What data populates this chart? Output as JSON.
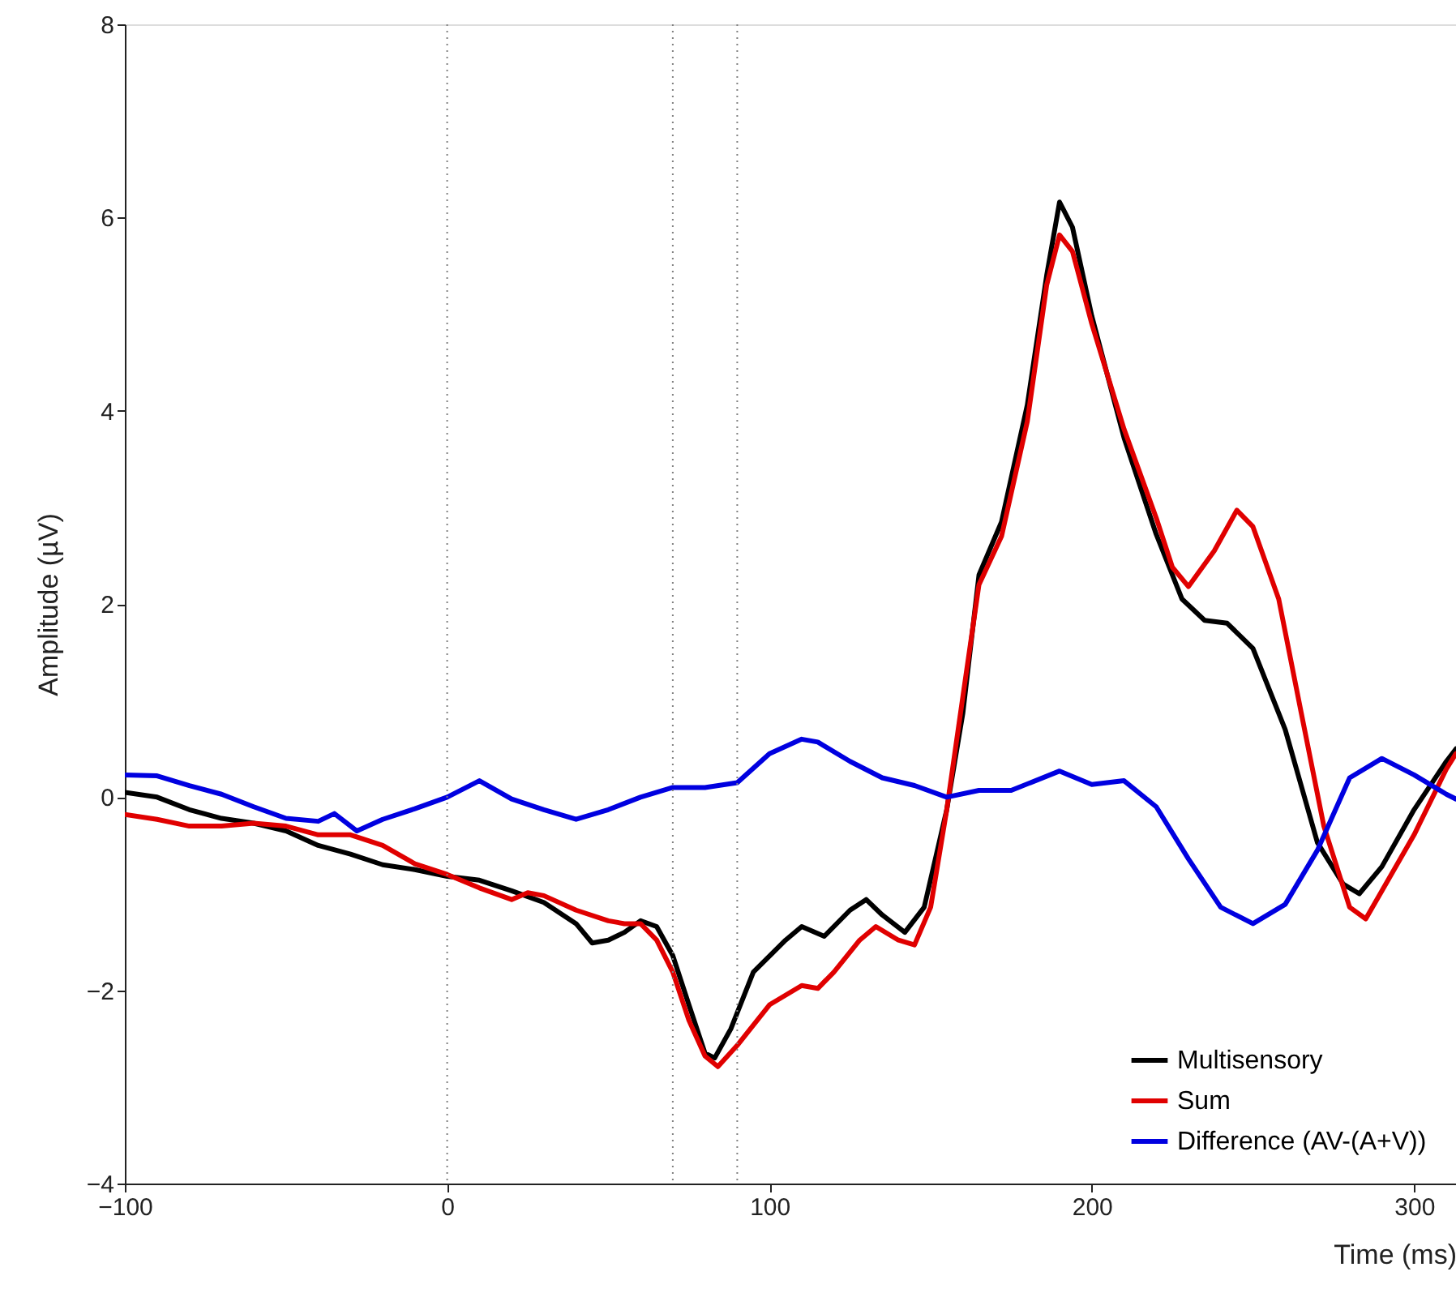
{
  "chart_data": {
    "type": "line",
    "xlabel": "Time (ms)",
    "ylabel": "Amplitude (µV)",
    "xlim": [
      -100,
      313
    ],
    "ylim": [
      -4,
      8
    ],
    "xticks": [
      -100,
      0,
      100,
      200,
      300
    ],
    "yticks": [
      -4,
      -2,
      0,
      2,
      4,
      6,
      8
    ],
    "grid": false,
    "legend": "bottom right",
    "line_style": "solid",
    "marker": "none",
    "ref_lines": [
      {
        "axis": "x",
        "value": 0,
        "color": "#808080",
        "line_style": "dotted"
      },
      {
        "axis": "x",
        "value": 70,
        "color": "#808080",
        "line_style": "dotted"
      },
      {
        "axis": "x",
        "value": 90,
        "color": "#808080",
        "line_style": "dotted"
      }
    ],
    "series": [
      {
        "name": "Multisensory",
        "color": "#000000",
        "x": [
          -100,
          -90,
          -80,
          -70,
          -60,
          -50,
          -40,
          -30,
          -20,
          -10,
          0,
          10,
          20,
          30,
          40,
          45,
          50,
          55,
          60,
          65,
          70,
          75,
          80,
          83,
          88,
          95,
          105,
          110,
          117,
          125,
          130,
          135,
          142,
          148,
          155,
          160,
          165,
          172,
          180,
          186,
          190,
          194,
          200,
          210,
          220,
          228,
          235,
          242,
          250,
          260,
          270,
          278,
          283,
          290,
          300,
          310,
          313
        ],
        "values": [
          0.05,
          0,
          -0.13,
          -0.22,
          -0.27,
          -0.35,
          -0.5,
          -0.59,
          -0.7,
          -0.75,
          -0.82,
          -0.86,
          -0.97,
          -1.09,
          -1.31,
          -1.51,
          -1.48,
          -1.4,
          -1.28,
          -1.34,
          -1.64,
          -2.15,
          -2.65,
          -2.7,
          -2.4,
          -1.81,
          -1.48,
          -1.34,
          -1.44,
          -1.17,
          -1.06,
          -1.22,
          -1.4,
          -1.14,
          -0.13,
          0.87,
          2.3,
          2.85,
          4.06,
          5.4,
          6.16,
          5.9,
          4.98,
          3.72,
          2.72,
          2.05,
          1.83,
          1.8,
          1.54,
          0.7,
          -0.47,
          -0.9,
          -1.0,
          -0.72,
          -0.13,
          0.37,
          0.5
        ]
      },
      {
        "name": "Sum",
        "color": "#e00000",
        "x": [
          -100,
          -90,
          -80,
          -70,
          -60,
          -50,
          -40,
          -30,
          -20,
          -10,
          0,
          10,
          20,
          25,
          30,
          40,
          50,
          55,
          60,
          65,
          70,
          75,
          80,
          84,
          90,
          100,
          110,
          115,
          120,
          128,
          133,
          140,
          145,
          150,
          155,
          160,
          165,
          172,
          180,
          186,
          190,
          194,
          200,
          210,
          220,
          225,
          230,
          238,
          245,
          250,
          258,
          265,
          272,
          280,
          285,
          290,
          300,
          310,
          313
        ],
        "values": [
          -0.18,
          -0.23,
          -0.3,
          -0.3,
          -0.27,
          -0.3,
          -0.39,
          -0.39,
          -0.5,
          -0.69,
          -0.8,
          -0.94,
          -1.06,
          -0.99,
          -1.02,
          -1.17,
          -1.28,
          -1.31,
          -1.31,
          -1.48,
          -1.81,
          -2.31,
          -2.68,
          -2.79,
          -2.57,
          -2.15,
          -1.95,
          -1.98,
          -1.81,
          -1.48,
          -1.34,
          -1.48,
          -1.53,
          -1.14,
          -0.13,
          1.04,
          2.2,
          2.7,
          3.89,
          5.3,
          5.82,
          5.65,
          4.9,
          3.81,
          2.89,
          2.38,
          2.18,
          2.55,
          2.97,
          2.8,
          2.05,
          0.87,
          -0.3,
          -1.14,
          -1.26,
          -0.97,
          -0.39,
          0.29,
          0.45
        ]
      },
      {
        "name": "Difference (AV-(A+V))",
        "color": "#0000e0",
        "x": [
          -100,
          -90,
          -80,
          -70,
          -60,
          -50,
          -40,
          -35,
          -28,
          -20,
          -10,
          0,
          10,
          20,
          30,
          40,
          50,
          60,
          70,
          80,
          90,
          100,
          110,
          115,
          125,
          135,
          145,
          155,
          165,
          175,
          190,
          200,
          210,
          220,
          230,
          240,
          250,
          260,
          270,
          280,
          290,
          300,
          310,
          313
        ],
        "values": [
          0.23,
          0.22,
          0.12,
          0.03,
          -0.1,
          -0.22,
          -0.25,
          -0.17,
          -0.35,
          -0.23,
          -0.12,
          0,
          0.17,
          -0.02,
          -0.13,
          -0.23,
          -0.13,
          0,
          0.1,
          0.1,
          0.15,
          0.45,
          0.6,
          0.57,
          0.37,
          0.2,
          0.12,
          0,
          0.07,
          0.07,
          0.27,
          0.13,
          0.17,
          -0.1,
          -0.64,
          -1.14,
          -1.31,
          -1.11,
          -0.55,
          0.2,
          0.4,
          0.23,
          0.03,
          -0.02
        ]
      }
    ]
  }
}
